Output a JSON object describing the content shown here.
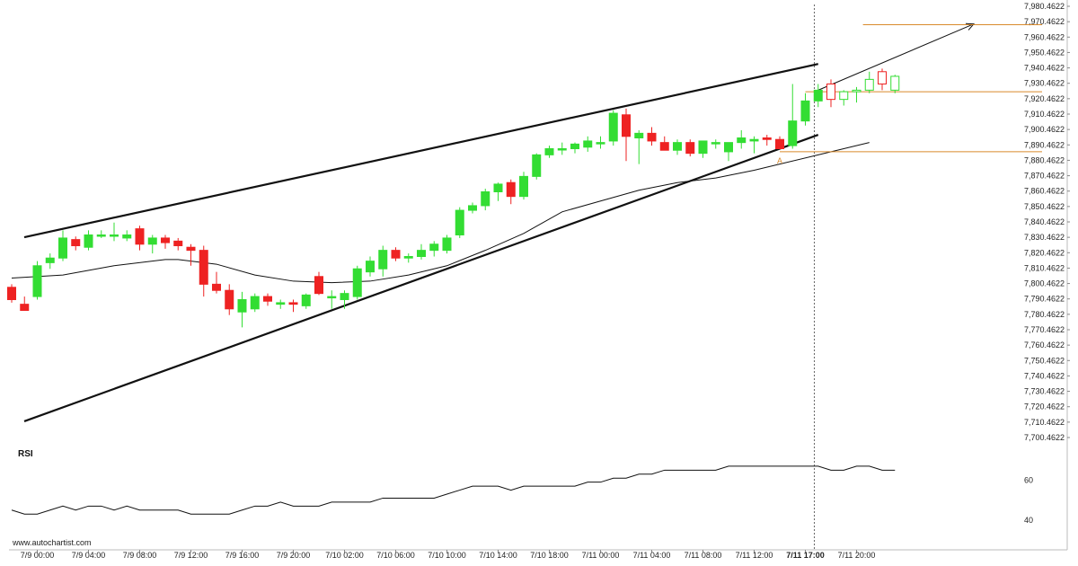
{
  "watermark": "www.autochartist.com",
  "chart_data": {
    "type": "candlestick",
    "y_ticks": [
      "7,980.4622",
      "7,970.4622",
      "7,960.4622",
      "7,950.4622",
      "7,940.4622",
      "7,930.4622",
      "7,920.4622",
      "7,910.4622",
      "7,900.4622",
      "7,890.4622",
      "7,880.4622",
      "7,870.4622",
      "7,860.4622",
      "7,850.4622",
      "7,840.4622",
      "7,830.4622",
      "7,820.4622",
      "7,810.4622",
      "7,800.4622",
      "7,790.4622",
      "7,780.4622",
      "7,770.4622",
      "7,760.4622",
      "7,750.4622",
      "7,740.4622",
      "7,730.4622",
      "7,720.4622",
      "7,710.4622",
      "7,700.4622"
    ],
    "ylim": [
      7695.4622,
      7982.4622
    ],
    "x_ticks": [
      {
        "label": "7/9 00:00",
        "idx": 2
      },
      {
        "label": "7/9 04:00",
        "idx": 6
      },
      {
        "label": "7/9 08:00",
        "idx": 10
      },
      {
        "label": "7/9 12:00",
        "idx": 14
      },
      {
        "label": "7/9 16:00",
        "idx": 18
      },
      {
        "label": "7/9 20:00",
        "idx": 22
      },
      {
        "label": "7/10 02:00",
        "idx": 26
      },
      {
        "label": "7/10 06:00",
        "idx": 30
      },
      {
        "label": "7/10 10:00",
        "idx": 34
      },
      {
        "label": "7/10 14:00",
        "idx": 38
      },
      {
        "label": "7/10 18:00",
        "idx": 42
      },
      {
        "label": "7/11 00:00",
        "idx": 46
      },
      {
        "label": "7/11 04:00",
        "idx": 50
      },
      {
        "label": "7/11 08:00",
        "idx": 54
      },
      {
        "label": "7/11 12:00",
        "idx": 58
      },
      {
        "label": "7/11 17:00",
        "idx": 62,
        "bold": true
      },
      {
        "label": "7/11 20:00",
        "idx": 66
      }
    ],
    "candles": [
      [
        7798,
        7800,
        7788,
        7790
      ],
      [
        7787,
        7792,
        7783,
        7783
      ],
      [
        7792,
        7815,
        7790,
        7812
      ],
      [
        7814,
        7820,
        7810,
        7817
      ],
      [
        7817,
        7835,
        7815,
        7830
      ],
      [
        7829,
        7831,
        7822,
        7825
      ],
      [
        7824,
        7835,
        7822,
        7832
      ],
      [
        7832,
        7835,
        7830,
        7832
      ],
      [
        7832,
        7840,
        7828,
        7832
      ],
      [
        7830,
        7835,
        7828,
        7832
      ],
      [
        7836,
        7838,
        7822,
        7826
      ],
      [
        7826,
        7832,
        7820,
        7830
      ],
      [
        7830,
        7832,
        7823,
        7827
      ],
      [
        7828,
        7830,
        7822,
        7825
      ],
      [
        7824,
        7826,
        7812,
        7822
      ],
      [
        7822,
        7825,
        7792,
        7800
      ],
      [
        7800,
        7808,
        7794,
        7796
      ],
      [
        7796,
        7800,
        7780,
        7784
      ],
      [
        7782,
        7795,
        7772,
        7790
      ],
      [
        7784,
        7794,
        7782,
        7792
      ],
      [
        7792,
        7794,
        7786,
        7789
      ],
      [
        7787,
        7790,
        7784,
        7788
      ],
      [
        7788,
        7790,
        7782,
        7787
      ],
      [
        7786,
        7794,
        7784,
        7793
      ],
      [
        7805,
        7808,
        7793,
        7794
      ],
      [
        7792,
        7796,
        7784,
        7792
      ],
      [
        7790,
        7796,
        7784,
        7794
      ],
      [
        7792,
        7812,
        7790,
        7810
      ],
      [
        7808,
        7818,
        7805,
        7815
      ],
      [
        7810,
        7825,
        7805,
        7822
      ],
      [
        7822,
        7824,
        7815,
        7817
      ],
      [
        7817,
        7820,
        7814,
        7818
      ],
      [
        7818,
        7826,
        7816,
        7822
      ],
      [
        7822,
        7828,
        7818,
        7826
      ],
      [
        7822,
        7832,
        7820,
        7830
      ],
      [
        7832,
        7850,
        7830,
        7848
      ],
      [
        7848,
        7853,
        7846,
        7851
      ],
      [
        7851,
        7862,
        7848,
        7860
      ],
      [
        7860,
        7866,
        7854,
        7865
      ],
      [
        7866,
        7868,
        7852,
        7857
      ],
      [
        7857,
        7873,
        7855,
        7870
      ],
      [
        7870,
        7885,
        7868,
        7884
      ],
      [
        7884,
        7890,
        7882,
        7888
      ],
      [
        7888,
        7892,
        7884,
        7888
      ],
      [
        7888,
        7892,
        7885,
        7891
      ],
      [
        7889,
        7896,
        7886,
        7893
      ],
      [
        7892,
        7896,
        7888,
        7892
      ],
      [
        7893,
        7913,
        7890,
        7911
      ],
      [
        7910,
        7914,
        7880,
        7896
      ],
      [
        7895,
        7900,
        7878,
        7898
      ],
      [
        7898,
        7902,
        7890,
        7893
      ],
      [
        7892,
        7896,
        7888,
        7887
      ],
      [
        7887,
        7894,
        7884,
        7892
      ],
      [
        7892,
        7894,
        7883,
        7885
      ],
      [
        7885,
        7893,
        7882,
        7893
      ],
      [
        7892,
        7894,
        7888,
        7892
      ],
      [
        7886,
        7892,
        7880,
        7892
      ],
      [
        7892,
        7900,
        7888,
        7895
      ],
      [
        7893,
        7896,
        7885,
        7894
      ],
      [
        7895,
        7897,
        7890,
        7894
      ],
      [
        7894,
        7896,
        7888,
        7888
      ],
      [
        7890,
        7930,
        7888,
        7906
      ],
      [
        7906,
        7924,
        7903,
        7919
      ],
      [
        7919,
        7930,
        7915,
        7926
      ],
      [
        7930,
        7933,
        7915,
        7920
      ],
      [
        7920,
        7926,
        7916,
        7925
      ],
      [
        7925,
        7928,
        7918,
        7926
      ],
      [
        7926,
        7938,
        7924,
        7933
      ],
      [
        7938,
        7940,
        7926,
        7930
      ],
      [
        7926,
        7936,
        7924,
        7935
      ]
    ],
    "candle_start_idx": 0,
    "ma": [
      [
        0,
        7804
      ],
      [
        4,
        7806
      ],
      [
        8,
        7812
      ],
      [
        12,
        7816
      ],
      [
        13,
        7816
      ],
      [
        16,
        7813
      ],
      [
        19,
        7806
      ],
      [
        22,
        7802
      ],
      [
        25,
        7801
      ],
      [
        28,
        7802
      ],
      [
        31,
        7806
      ],
      [
        34,
        7812
      ],
      [
        37,
        7822
      ],
      [
        40,
        7833
      ],
      [
        43,
        7847
      ],
      [
        46,
        7854
      ],
      [
        49,
        7861
      ],
      [
        52,
        7866
      ],
      [
        55,
        7869
      ],
      [
        58,
        7874
      ],
      [
        60,
        7878
      ],
      [
        63,
        7884
      ],
      [
        65,
        7888
      ],
      [
        67,
        7892
      ]
    ],
    "trendlines": [
      {
        "from": [
          0,
          7830.5
        ],
        "to": [
          63,
          7943
        ]
      },
      {
        "from": [
          0,
          7711
        ],
        "to": [
          63,
          7897
        ]
      }
    ],
    "arrow": {
      "from": [
        63,
        7926
      ],
      "to": [
        76,
        7969
      ]
    },
    "levels": [
      {
        "value": 7968.5,
        "from_idx": 66.5
      },
      {
        "value": 7925,
        "from_idx": 62
      },
      {
        "value": 7886,
        "from_idx": 60
      }
    ],
    "point_label": {
      "text": "A",
      "idx": 60,
      "value": 7880
    },
    "current_time_idx": 62.7,
    "rsi": {
      "title": "RSI",
      "ticks": [
        "60",
        "40"
      ],
      "ylim": [
        35,
        80
      ],
      "values": [
        45,
        43,
        43,
        45,
        47,
        45,
        47,
        47,
        45,
        47,
        45,
        45,
        45,
        45,
        43,
        43,
        43,
        43,
        45,
        47,
        47,
        49,
        47,
        47,
        47,
        49,
        49,
        49,
        49,
        51,
        51,
        51,
        51,
        51,
        53,
        55,
        57,
        57,
        57,
        55,
        57,
        57,
        57,
        57,
        57,
        59,
        59,
        61,
        61,
        63,
        63,
        65,
        65,
        65,
        65,
        65,
        67,
        67,
        67,
        67,
        67,
        67,
        67,
        67,
        65,
        65,
        67,
        67,
        65,
        65
      ]
    }
  }
}
